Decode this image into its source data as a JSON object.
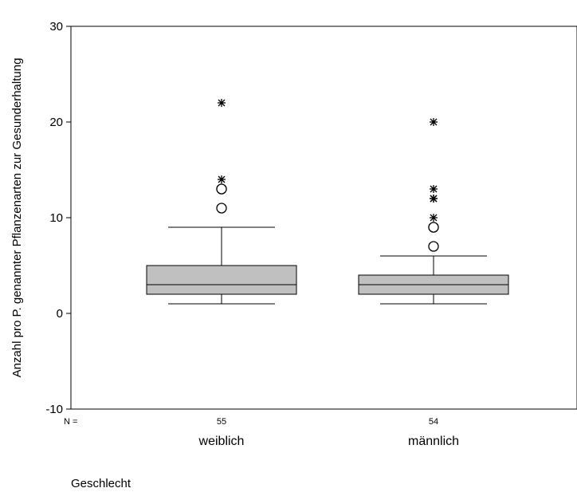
{
  "chart_data": {
    "type": "box",
    "ylabel": "Anzahl pro P. genannter Pflanzenarten zur Gesunderhaltung",
    "xlabel": "Geschlecht",
    "n_prefix": "N =",
    "ylim": [
      -10,
      30
    ],
    "yticks": [
      -10,
      0,
      10,
      20,
      30
    ],
    "ytick_labels": [
      "-10",
      "0",
      "10",
      "20",
      "30"
    ],
    "grid": false,
    "box_color": "#c0c0c0",
    "groups": [
      {
        "category": "weiblich",
        "n": "55",
        "min": 1,
        "q1": 2,
        "median": 3,
        "q3": 5,
        "max": 9,
        "outliers": [
          11,
          13,
          13
        ],
        "extremes": [
          14,
          22
        ]
      },
      {
        "category": "männlich",
        "n": "54",
        "min": 1,
        "q1": 2,
        "median": 3,
        "q3": 4,
        "max": 6,
        "outliers": [
          7,
          9,
          9
        ],
        "extremes": [
          10,
          12,
          12,
          13,
          20
        ]
      }
    ]
  }
}
